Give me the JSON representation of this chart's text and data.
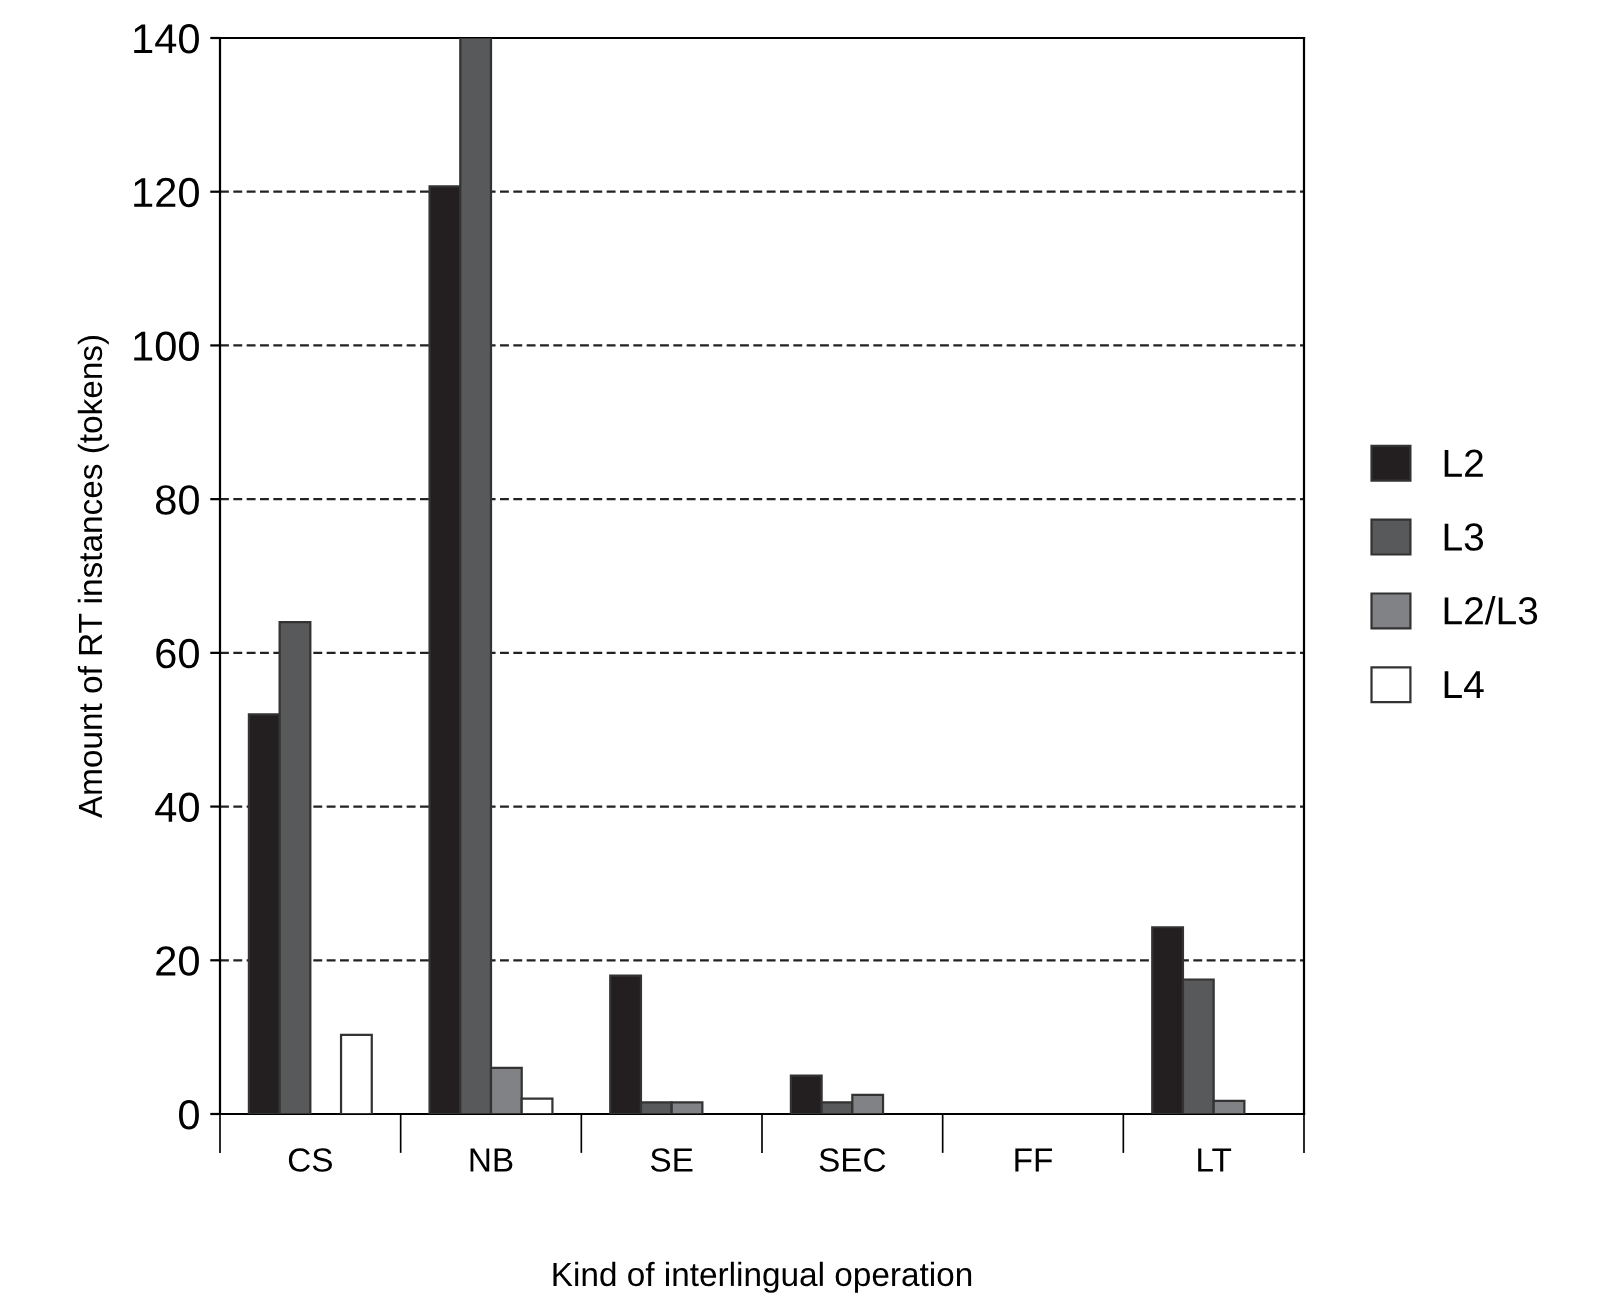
{
  "chart_data": {
    "type": "bar",
    "xlabel": "Kind of interlingual operation",
    "ylabel": "Amount of RT instances (tokens)",
    "categories": [
      "CS",
      "NB",
      "SE",
      "SEC",
      "FF",
      "LT"
    ],
    "series": [
      {
        "name": "L2",
        "color": "#231f20",
        "values": [
          52,
          120.7,
          18,
          5,
          null,
          24.3
        ]
      },
      {
        "name": "L3",
        "color": "#58595b",
        "values": [
          64,
          140,
          1.5,
          1.5,
          null,
          17.5
        ]
      },
      {
        "name": "L2/L3",
        "color": "#808285",
        "values": [
          null,
          6,
          1.5,
          2.5,
          null,
          1.7
        ]
      },
      {
        "name": "L4",
        "color": "#ffffff",
        "values": [
          10.3,
          2,
          null,
          null,
          null,
          null
        ]
      }
    ],
    "ylim": [
      0,
      140
    ],
    "yticks": [
      0,
      20,
      40,
      60,
      80,
      100,
      120,
      140
    ],
    "grid": "y",
    "legend": "right"
  }
}
